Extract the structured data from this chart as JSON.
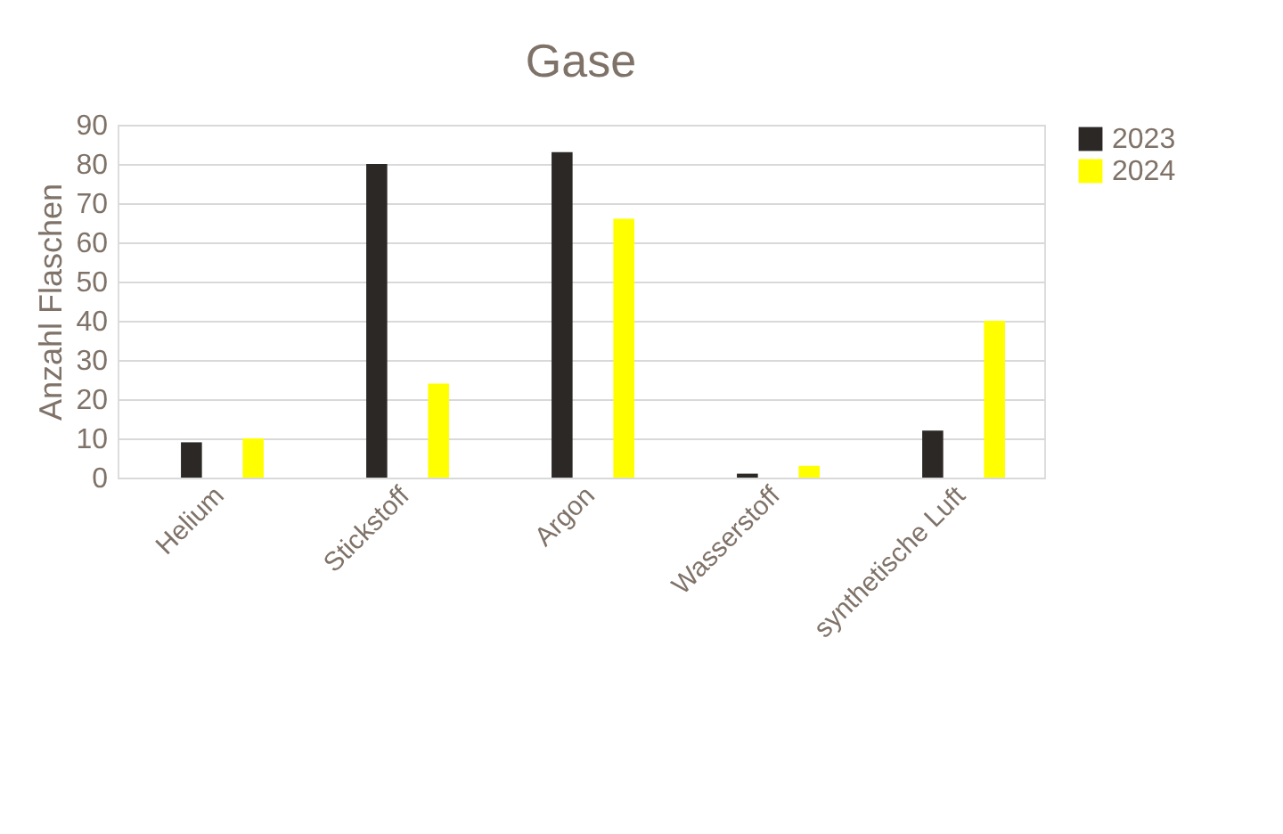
{
  "chart_data": {
    "type": "bar",
    "title": "Gase",
    "ylabel": "Anzahl Flaschen",
    "categories": [
      "Helium",
      "Stickstoff",
      "Argon",
      "Wasserstoff",
      "synthetische Luft"
    ],
    "series": [
      {
        "name": "2023",
        "color": "#2b2825",
        "values": [
          9,
          80,
          83,
          1,
          12
        ]
      },
      {
        "name": "2024",
        "color": "#ffff00",
        "values": [
          10,
          24,
          66,
          3,
          40
        ]
      }
    ],
    "ylim": [
      0,
      90
    ],
    "yticks": [
      0,
      10,
      20,
      30,
      40,
      50,
      60,
      70,
      80,
      90
    ],
    "grid": "y",
    "legend": "right"
  }
}
